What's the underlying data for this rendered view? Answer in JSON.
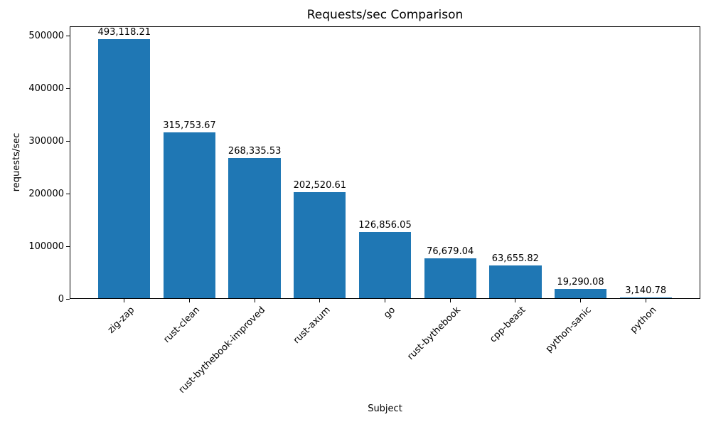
{
  "chart_data": {
    "type": "bar",
    "title": "Requests/sec Comparison",
    "xlabel": "Subject",
    "ylabel": "requests/sec",
    "categories": [
      "zig-zap",
      "rust-clean",
      "rust-bythebook-improved",
      "rust-axum",
      "go",
      "rust-bythebook",
      "cpp-beast",
      "python-sanic",
      "python"
    ],
    "values": [
      493118.21,
      315753.67,
      268335.53,
      202520.61,
      126856.05,
      76679.04,
      63655.82,
      19290.08,
      3140.78
    ],
    "value_labels": [
      "493,118.21",
      "315,753.67",
      "268,335.53",
      "202,520.61",
      "126,856.05",
      "76,679.04",
      "63,655.82",
      "19,290.08",
      "3,140.78"
    ],
    "yticks": [
      0,
      100000,
      200000,
      300000,
      400000,
      500000
    ],
    "ytick_labels": [
      "0",
      "100000",
      "200000",
      "300000",
      "400000",
      "500000"
    ],
    "ylim": [
      0,
      517774
    ],
    "bar_color": "#1f77b4",
    "text_color": "#000000",
    "grid": false,
    "legend": "none",
    "x_tick_rotation_deg": 45
  }
}
